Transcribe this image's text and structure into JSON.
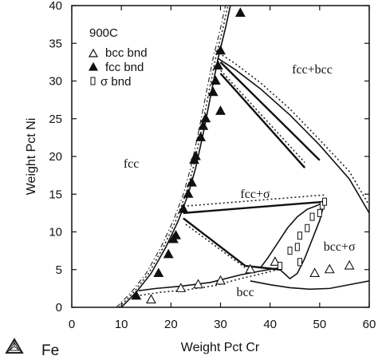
{
  "chart_data": {
    "type": "scatter",
    "xlabel": "Weight Pct Cr",
    "ylabel": "Weight Pct Ni",
    "xlim": [
      0,
      60
    ],
    "ylim": [
      0,
      40
    ],
    "x_ticks": [
      "0",
      "10",
      "20",
      "30",
      "40",
      "50",
      "60"
    ],
    "y_ticks": [
      "0",
      "5",
      "10",
      "15",
      "20",
      "25",
      "30",
      "35",
      "40"
    ],
    "grid": false,
    "legend_position": "top-left",
    "legend_title": "900C",
    "legend": [
      {
        "marker": "open-triangle",
        "label": "bcc bnd"
      },
      {
        "marker": "filled-triangle",
        "label": "fcc bnd"
      },
      {
        "marker": "sigma-box",
        "label": "σ bnd"
      }
    ],
    "phase_labels": [
      {
        "text": "fcc",
        "x": 12,
        "y": 18.5
      },
      {
        "text": "fcc+bcc",
        "x": 48.5,
        "y": 31
      },
      {
        "text": "fcc+σ",
        "x": 37,
        "y": 14.5
      },
      {
        "text": "bcc+σ",
        "x": 54,
        "y": 7.5
      },
      {
        "text": "bcc",
        "x": 35,
        "y": 1.5
      }
    ],
    "corner_label": "Fe",
    "series": [
      {
        "kind": "filled-triangle",
        "points": [
          [
            13,
            1.5
          ],
          [
            17.5,
            4.5
          ],
          [
            19.5,
            7
          ],
          [
            20.5,
            9
          ],
          [
            21,
            9.5
          ],
          [
            22.5,
            13
          ],
          [
            23.5,
            15
          ],
          [
            24.2,
            16.5
          ],
          [
            24.7,
            19.5
          ],
          [
            25,
            20
          ],
          [
            26,
            22.5
          ],
          [
            26.5,
            24
          ],
          [
            27,
            25
          ],
          [
            28.5,
            28.5
          ],
          [
            29,
            30
          ],
          [
            29.5,
            32
          ],
          [
            30,
            34
          ],
          [
            30,
            26
          ],
          [
            34,
            39
          ]
        ]
      },
      {
        "kind": "open-triangle",
        "points": [
          [
            16,
            1
          ],
          [
            22,
            2.5
          ],
          [
            25.5,
            3
          ],
          [
            30,
            3.5
          ],
          [
            36,
            5
          ],
          [
            41,
            6
          ],
          [
            49,
            4.5
          ],
          [
            52,
            5
          ],
          [
            56,
            5.5
          ]
        ]
      },
      {
        "kind": "sigma-box",
        "points": [
          [
            42,
            5.5
          ],
          [
            44,
            7.5
          ],
          [
            45.5,
            8
          ],
          [
            46,
            9.5
          ],
          [
            47.5,
            10.5
          ],
          [
            48.5,
            12
          ],
          [
            50,
            12.5
          ],
          [
            50.5,
            13.5
          ],
          [
            46,
            6
          ],
          [
            51,
            14
          ]
        ]
      }
    ],
    "boundaries": [
      {
        "kind": "solid",
        "points": [
          [
            10,
            0
          ],
          [
            13,
            2
          ],
          [
            16,
            4.5
          ],
          [
            19,
            8
          ],
          [
            21.5,
            11.5
          ],
          [
            23.5,
            15
          ],
          [
            25,
            18.5
          ],
          [
            26.5,
            23
          ],
          [
            28,
            28
          ],
          [
            29.5,
            33
          ],
          [
            31,
            37
          ],
          [
            32,
            40
          ]
        ]
      },
      {
        "kind": "dotted",
        "points": [
          [
            9.5,
            0
          ],
          [
            12.5,
            2
          ],
          [
            15.5,
            4.5
          ],
          [
            18.5,
            8
          ],
          [
            21,
            11.5
          ],
          [
            23,
            15
          ],
          [
            24.5,
            18.5
          ],
          [
            26,
            23
          ],
          [
            27.5,
            28
          ],
          [
            29,
            33
          ],
          [
            30.5,
            37
          ],
          [
            31.5,
            40
          ]
        ]
      },
      {
        "kind": "dashdot",
        "points": [
          [
            9,
            0
          ],
          [
            12,
            2
          ],
          [
            15,
            4.5
          ],
          [
            18,
            8
          ],
          [
            20.5,
            11.5
          ],
          [
            22.5,
            15
          ],
          [
            24,
            18.5
          ],
          [
            25.5,
            23
          ],
          [
            27,
            28
          ],
          [
            28.5,
            33
          ],
          [
            30,
            37
          ],
          [
            31,
            40
          ]
        ]
      },
      {
        "kind": "solid",
        "points": [
          [
            29.5,
            33
          ],
          [
            33,
            31.5
          ],
          [
            38,
            29
          ],
          [
            44,
            25.5
          ],
          [
            50,
            21.5
          ],
          [
            56,
            17
          ],
          [
            60,
            12.5
          ]
        ]
      },
      {
        "kind": "dotted",
        "points": [
          [
            29,
            34
          ],
          [
            33,
            32.3
          ],
          [
            38,
            29.8
          ],
          [
            44,
            26.3
          ],
          [
            50,
            22.2
          ],
          [
            56,
            18
          ],
          [
            60,
            13.5
          ]
        ]
      },
      {
        "kind": "solid",
        "points": [
          [
            13.5,
            2.2
          ],
          [
            17,
            2.5
          ],
          [
            22,
            2.8
          ],
          [
            28,
            3.3
          ],
          [
            34,
            4.3
          ],
          [
            38,
            4.8
          ],
          [
            41.5,
            5.2
          ]
        ]
      },
      {
        "kind": "dotted",
        "points": [
          [
            13,
            1.5
          ],
          [
            18,
            2
          ],
          [
            23,
            2.3
          ],
          [
            29,
            2.9
          ],
          [
            34,
            3.8
          ],
          [
            38,
            4.4
          ],
          [
            41.5,
            5
          ]
        ]
      },
      {
        "kind": "solid",
        "points": [
          [
            36,
            3.5
          ],
          [
            40,
            3
          ],
          [
            44,
            2.6
          ],
          [
            48,
            2.4
          ],
          [
            52,
            2.5
          ],
          [
            56,
            3
          ],
          [
            60,
            3.5
          ]
        ]
      },
      {
        "kind": "solid",
        "points": [
          [
            38,
            5.2
          ],
          [
            39.5,
            6.5
          ],
          [
            41.5,
            8.5
          ],
          [
            43.5,
            10.5
          ],
          [
            45.5,
            12
          ],
          [
            47.5,
            13
          ],
          [
            49.5,
            13.5
          ],
          [
            51,
            14
          ]
        ]
      },
      {
        "kind": "solid",
        "points": [
          [
            42,
            5
          ],
          [
            44,
            3.8
          ],
          [
            45.5,
            4.5
          ],
          [
            47,
            6.5
          ],
          [
            48.5,
            9
          ],
          [
            50,
            11.5
          ],
          [
            51,
            14
          ]
        ]
      }
    ],
    "tie_lines": [
      {
        "kind": "solid",
        "points": [
          [
            30,
            31
          ],
          [
            47,
            18.5
          ]
        ]
      },
      {
        "kind": "solid",
        "points": [
          [
            30,
            32.5
          ],
          [
            50,
            19.5
          ]
        ]
      },
      {
        "kind": "dotted",
        "points": [
          [
            29.5,
            31.8
          ],
          [
            47,
            19.2
          ]
        ]
      },
      {
        "kind": "solid",
        "points": [
          [
            22.5,
            12.5
          ],
          [
            51,
            14
          ]
        ]
      },
      {
        "kind": "dotted",
        "points": [
          [
            22.5,
            13.4
          ],
          [
            51,
            14.9
          ]
        ]
      },
      {
        "kind": "solid",
        "points": [
          [
            22.5,
            11.8
          ],
          [
            35,
            5.5
          ]
        ]
      },
      {
        "kind": "solid",
        "points": [
          [
            35,
            5.5
          ],
          [
            42,
            5
          ]
        ]
      },
      {
        "kind": "dotted",
        "points": [
          [
            23,
            11
          ],
          [
            35.5,
            5
          ]
        ]
      }
    ]
  }
}
